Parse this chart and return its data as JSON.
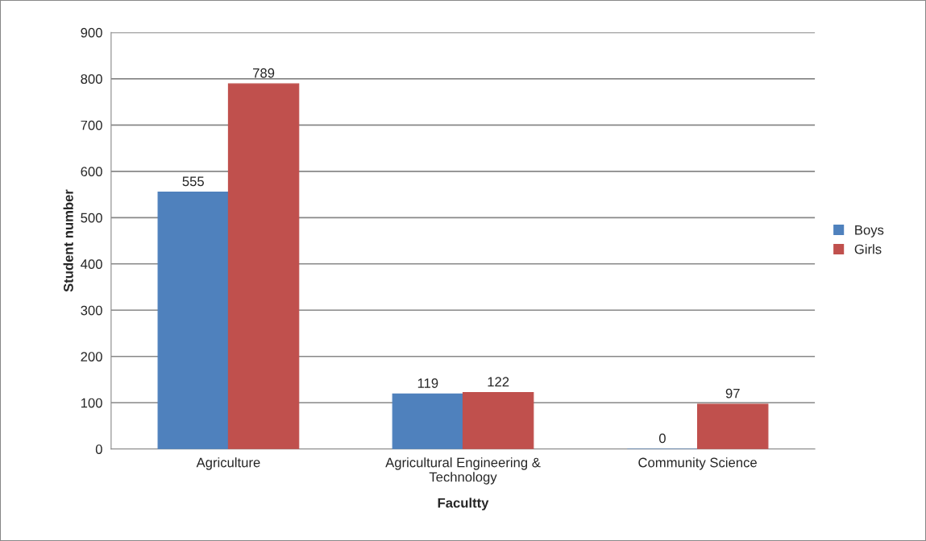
{
  "chart_data": {
    "type": "bar",
    "xlabel": "Facultty",
    "ylabel": "Student number",
    "categories": [
      "Agriculture",
      "Agricultural Engineering &\nTechnology",
      "Community Science"
    ],
    "series": [
      {
        "name": "Boys",
        "color": "#4f81bd",
        "values": [
          555,
          119,
          0
        ]
      },
      {
        "name": "Girls",
        "color": "#c0504d",
        "values": [
          789,
          122,
          97
        ]
      }
    ],
    "ylim": [
      0,
      900
    ],
    "yticks": [
      0,
      100,
      200,
      300,
      400,
      500,
      600,
      700,
      800,
      900
    ],
    "grid": "y",
    "legend": "right",
    "data_labels": true
  }
}
